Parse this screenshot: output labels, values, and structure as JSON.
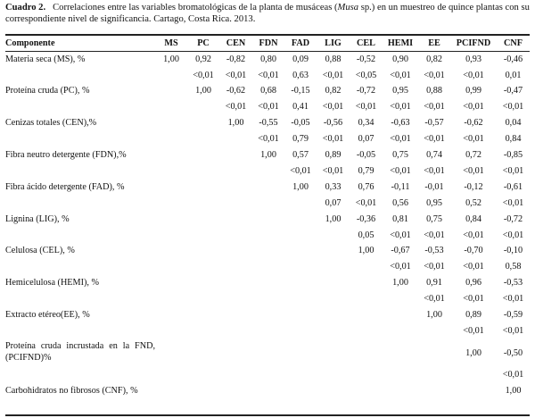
{
  "caption": {
    "label": "Cuadro 2.",
    "text_before": "Correlaciones entre las variables bromatológicas de la planta de musáceas (",
    "italic": "Musa",
    "text_after": " sp.) en un muestreo de quince plantas con su correspondiente nivel de significancia. Cartago, Costa Rica. 2013."
  },
  "table": {
    "headers": [
      "Componente",
      "MS",
      "PC",
      "CEN",
      "FDN",
      "FAD",
      "LIG",
      "CEL",
      "HEMI",
      "EE",
      "PCIFND",
      "CNF"
    ],
    "rows": [
      {
        "name": "Materia seca (MS), %",
        "corr": [
          "1,00",
          "0,92",
          "-0,82",
          "0,80",
          "0,09",
          "0,88",
          "-0,52",
          "0,90",
          "0,82",
          "0,93",
          "-0,46"
        ],
        "sig": [
          "",
          "<0,01",
          "<0,01",
          "<0,01",
          "0,63",
          "<0,01",
          "<0,05",
          "<0,01",
          "<0,01",
          "<0,01",
          "0,01"
        ]
      },
      {
        "name": "Proteína cruda (PC), %",
        "corr": [
          "",
          "1,00",
          "-0,62",
          "0,68",
          "-0,15",
          "0,82",
          "-0,72",
          "0,95",
          "0,88",
          "0,99",
          "-0,47"
        ],
        "sig": [
          "",
          "",
          "<0,01",
          "<0,01",
          "0,41",
          "<0,01",
          "<0,01",
          "<0,01",
          "<0,01",
          "<0,01",
          "<0,01"
        ]
      },
      {
        "name": "Cenizas totales (CEN),%",
        "corr": [
          "",
          "",
          "1,00",
          "-0,55",
          "-0,05",
          "-0,56",
          "0,34",
          "-0,63",
          "-0,57",
          "-0,62",
          "0,04"
        ],
        "sig": [
          "",
          "",
          "",
          "<0,01",
          "0,79",
          "<0,01",
          "0,07",
          "<0,01",
          "<0,01",
          "<0,01",
          "0,84"
        ]
      },
      {
        "name": "Fibra neutro detergente (FDN),%",
        "corr": [
          "",
          "",
          "",
          "1,00",
          "0,57",
          "0,89",
          "-0,05",
          "0,75",
          "0,74",
          "0,72",
          "-0,85"
        ],
        "sig": [
          "",
          "",
          "",
          "",
          "<0,01",
          "<0,01",
          "0,79",
          "<0,01",
          "<0,01",
          "<0,01",
          "<0,01"
        ]
      },
      {
        "name": "Fibra ácido detergente (FAD), %",
        "corr": [
          "",
          "",
          "",
          "",
          "1,00",
          "0,33",
          "0,76",
          "-0,11",
          "-0,01",
          "-0,12",
          "-0,61"
        ],
        "sig": [
          "",
          "",
          "",
          "",
          "",
          "0,07",
          "<0,01",
          "0,56",
          "0,95",
          "0,52",
          "<0,01"
        ]
      },
      {
        "name": "Lignina (LIG), %",
        "corr": [
          "",
          "",
          "",
          "",
          "",
          "1,00",
          "-0,36",
          "0,81",
          "0,75",
          "0,84",
          "-0,72"
        ],
        "sig": [
          "",
          "",
          "",
          "",
          "",
          "",
          "0,05",
          "<0,01",
          "<0,01",
          "<0,01",
          "<0,01"
        ]
      },
      {
        "name": "Celulosa (CEL), %",
        "corr": [
          "",
          "",
          "",
          "",
          "",
          "",
          "1,00",
          "-0,67",
          "-0,53",
          "-0,70",
          "-0,10"
        ],
        "sig": [
          "",
          "",
          "",
          "",
          "",
          "",
          "",
          "<0,01",
          "<0,01",
          "<0,01",
          "0,58"
        ]
      },
      {
        "name": "Hemicelulosa (HEMI), %",
        "corr": [
          "",
          "",
          "",
          "",
          "",
          "",
          "",
          "1,00",
          "0,91",
          "0,96",
          "-0,53"
        ],
        "sig": [
          "",
          "",
          "",
          "",
          "",
          "",
          "",
          "",
          "<0,01",
          "<0,01",
          "<0,01"
        ]
      },
      {
        "name": "Extracto etéreo(EE), %",
        "corr": [
          "",
          "",
          "",
          "",
          "",
          "",
          "",
          "",
          "1,00",
          "0,89",
          "-0,59"
        ],
        "sig": [
          "",
          "",
          "",
          "",
          "",
          "",
          "",
          "",
          "",
          "<0,01",
          "<0,01"
        ]
      },
      {
        "name": "Proteína cruda incrustada en la FND, (PCIFND)%",
        "corr": [
          "",
          "",
          "",
          "",
          "",
          "",
          "",
          "",
          "",
          "1,00",
          "-0,50"
        ],
        "sig": [
          "",
          "",
          "",
          "",
          "",
          "",
          "",
          "",
          "",
          "",
          "<0,01"
        ]
      },
      {
        "name": "Carbohidratos no fibrosos (CNF), %",
        "corr": [
          "",
          "",
          "",
          "",
          "",
          "",
          "",
          "",
          "",
          "",
          "1,00"
        ],
        "sig": [
          "",
          "",
          "",
          "",
          "",
          "",
          "",
          "",
          "",
          "",
          ""
        ]
      }
    ]
  }
}
